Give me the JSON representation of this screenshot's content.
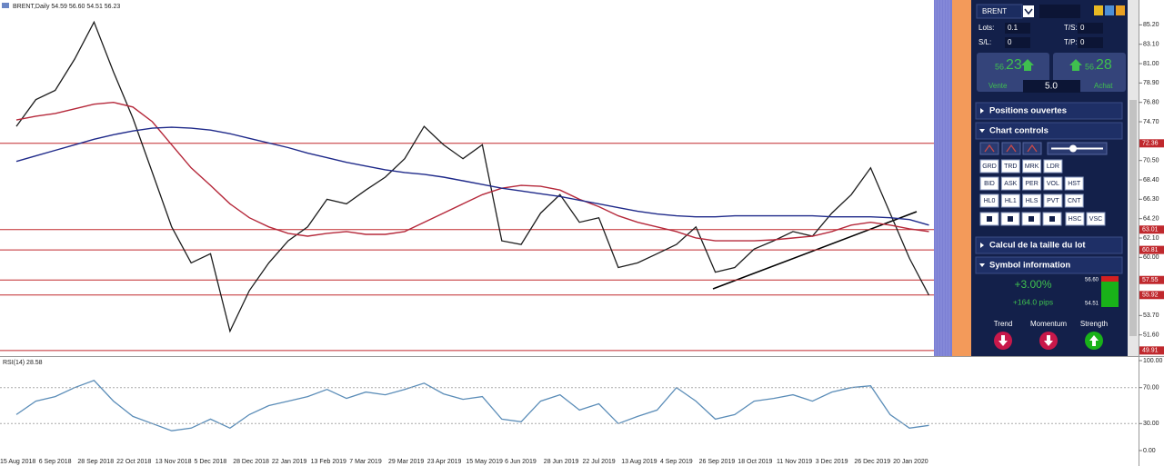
{
  "chart_header": "BRENT,Daily  54.59 56.60 54.51 56.23",
  "price_chart": {
    "type": "line",
    "categories": [
      "15 Aug 2018",
      null,
      "6 Sep 2018",
      null,
      "28 Sep 2018",
      null,
      "22 Oct 2018",
      null,
      "13 Nov 2018",
      null,
      "5 Dec 2018",
      null,
      "28 Dec 2018",
      null,
      "22 Jan 2019",
      null,
      "13 Feb 2019",
      null,
      "7 Mar 2019",
      null,
      "29 Mar 2019",
      null,
      "23 Apr 2019",
      null,
      "15 May 2019",
      null,
      "6 Jun 2019",
      null,
      "28 Jun 2019",
      null,
      "22 Jul 2019",
      null,
      "13 Aug 2019",
      null,
      "4 Sep 2019",
      null,
      "26 Sep 2019",
      null,
      "18 Oct 2019",
      null,
      "11 Nov 2019",
      null,
      "3 Dec 2019",
      null,
      "26 Dec 2019",
      null,
      "20 Jan 2020",
      null
    ],
    "series": [
      {
        "color": "#1c1c1c",
        "values": [
          74.2,
          77.1,
          78.1,
          81.5,
          85.5,
          80.1,
          75.1,
          69.2,
          63.3,
          59.4,
          60.4,
          52.0,
          56.4,
          59.4,
          61.8,
          63.3,
          66.3,
          65.8,
          67.3,
          68.7,
          70.7,
          74.2,
          72.2,
          70.7,
          72.2,
          61.8,
          61.4,
          64.8,
          66.8,
          63.8,
          64.3,
          58.9,
          59.4,
          60.4,
          61.4,
          63.3,
          58.4,
          58.9,
          60.9,
          61.8,
          62.8,
          62.3,
          64.8,
          66.8,
          69.7,
          64.8,
          59.9,
          55.9
        ]
      },
      {
        "color": "#b5283a",
        "values": [
          74.9,
          75.3,
          75.6,
          76.1,
          76.6,
          76.8,
          76.3,
          74.7,
          72.2,
          69.7,
          67.8,
          65.8,
          64.3,
          63.3,
          62.6,
          62.3,
          62.6,
          62.8,
          62.5,
          62.5,
          62.8,
          63.8,
          64.8,
          65.8,
          66.8,
          67.5,
          67.8,
          67.7,
          67.3,
          66.3,
          65.5,
          64.5,
          63.8,
          63.3,
          62.8,
          62.1,
          61.8,
          61.8,
          61.8,
          61.9,
          62.1,
          62.3,
          62.8,
          63.5,
          63.8,
          63.5,
          63.1,
          62.8
        ]
      },
      {
        "color": "#1f2a8a",
        "values": [
          70.4,
          71.0,
          71.6,
          72.2,
          72.8,
          73.3,
          73.7,
          74.0,
          74.1,
          74.0,
          73.8,
          73.4,
          72.9,
          72.4,
          71.9,
          71.3,
          70.8,
          70.3,
          69.9,
          69.5,
          69.2,
          69.0,
          68.7,
          68.3,
          67.9,
          67.5,
          67.2,
          66.9,
          66.6,
          66.2,
          65.8,
          65.4,
          65.0,
          64.7,
          64.5,
          64.4,
          64.4,
          64.5,
          64.5,
          64.5,
          64.5,
          64.5,
          64.4,
          64.4,
          64.4,
          64.3,
          64.1,
          63.5
        ]
      }
    ],
    "ylim": [
      49.5,
      87.6
    ],
    "yticks": [
      {
        "value": 85.2,
        "label": "85.20"
      },
      {
        "value": 83.1,
        "label": "83.10"
      },
      {
        "value": 81,
        "label": "81.00"
      },
      {
        "value": 78.9,
        "label": "78.90"
      },
      {
        "value": 76.8,
        "label": "76.80"
      },
      {
        "value": 74.7,
        "label": "74.70"
      },
      {
        "value": 70.5,
        "label": "70.50"
      },
      {
        "value": 68.4,
        "label": "68.40"
      },
      {
        "value": 66.3,
        "label": "66.30"
      },
      {
        "value": 64.2,
        "label": "64.20"
      },
      {
        "value": 62.1,
        "label": "62.10"
      },
      {
        "value": 60,
        "label": "60.00"
      },
      {
        "value": 53.7,
        "label": "53.70"
      },
      {
        "value": 51.6,
        "label": "51.60"
      }
    ],
    "levels": [
      {
        "value": 72.36,
        "label": "72.36"
      },
      {
        "value": 63.01,
        "label": "63.01"
      },
      {
        "value": 60.81,
        "label": "60.81"
      },
      {
        "value": 57.55,
        "label": "57.55"
      },
      {
        "value": 55.92,
        "label": "55.92"
      },
      {
        "value": 49.91,
        "label": "49.91"
      }
    ],
    "level_color": "#c0282d"
  },
  "rsi_chart": {
    "type": "line",
    "title": "RSI(14) 28.58",
    "series": [
      {
        "color": "#5b8db8",
        "values": [
          40,
          55,
          60,
          70,
          78,
          55,
          38,
          30,
          22,
          25,
          35,
          25,
          40,
          50,
          55,
          60,
          68,
          58,
          65,
          62,
          68,
          75,
          63,
          57,
          60,
          35,
          32,
          55,
          62,
          45,
          52,
          30,
          38,
          45,
          70,
          55,
          35,
          40,
          55,
          58,
          62,
          55,
          65,
          70,
          72,
          40,
          25,
          28
        ]
      }
    ],
    "ylim": [
      0,
      100
    ],
    "yticks": [
      {
        "value": 100,
        "label": "100.00"
      },
      {
        "value": 70,
        "label": "70.00"
      },
      {
        "value": 30,
        "label": "30.00"
      },
      {
        "value": 0,
        "label": "0.00"
      }
    ]
  },
  "panel": {
    "symbol": "BRENT",
    "lots_label": "Lots:",
    "lots": "0.1",
    "ts_label": "T/S:",
    "ts": "0",
    "sl_label": "S/L:",
    "sl": "0",
    "tp_label": "T/P:",
    "tp": "0",
    "sell": {
      "small": "56.",
      "big": "23",
      "label": "Vente"
    },
    "buy": {
      "small": "56.",
      "big": "28",
      "label": "Achat"
    },
    "spread": "5.0",
    "sections": [
      "Positions ouvertes",
      "Chart controls",
      "Calcul de la taille du lot",
      "Symbol information"
    ],
    "buttons": [
      [
        "GRD",
        "TRD",
        "MRK",
        "LDR"
      ],
      [
        "BID",
        "ASK",
        "PER",
        "VOL",
        "HST"
      ],
      [
        "HL0",
        "HL1",
        "HLS",
        "PVT",
        "CNT"
      ],
      [
        "HSC",
        "VSC"
      ]
    ],
    "change": "+3.00%",
    "pips": "+164.0 pips",
    "high": "56.60",
    "low": "54.51",
    "indicators": [
      "Trend",
      "Momentum",
      "Strength"
    ]
  }
}
